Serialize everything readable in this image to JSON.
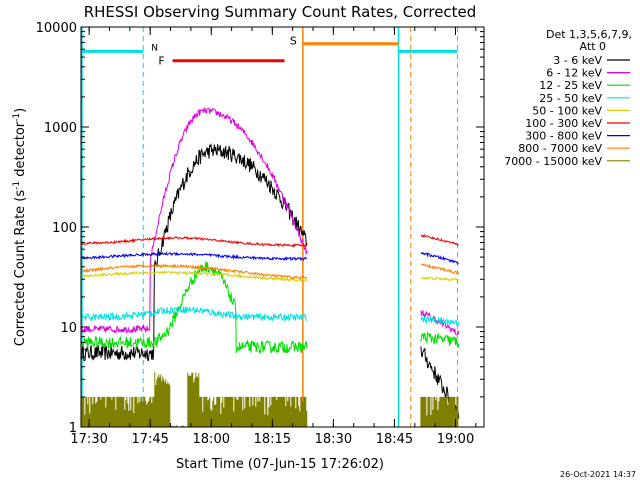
{
  "chart_data": {
    "type": "line",
    "title": "RHESSI Observing Summary Count Rates, Corrected",
    "xlabel": "Start Time (07-Jun-15 17:26:02)",
    "ylabel_main": "Corrected Count Rate (s",
    "ylabel_sup1": "-1",
    "ylabel_mid": " detector",
    "ylabel_sup2": "-1",
    "ylabel_end": ")",
    "yscale": "log",
    "ylim": [
      1,
      10000
    ],
    "xlim_minutes": [
      17.4667,
      19.1167
    ],
    "x_ticks": [
      {
        "label": "17:30",
        "minutes": 17.5
      },
      {
        "label": "17:45",
        "minutes": 17.75
      },
      {
        "label": "18:00",
        "minutes": 18.0
      },
      {
        "label": "18:15",
        "minutes": 18.25
      },
      {
        "label": "18:30",
        "minutes": 18.5
      },
      {
        "label": "18:45",
        "minutes": 18.75
      },
      {
        "label": "19:00",
        "minutes": 19.0
      }
    ],
    "y_ticks": [
      {
        "label": "1",
        "value": 1
      },
      {
        "label": "10",
        "value": 10
      },
      {
        "label": "100",
        "value": 100
      },
      {
        "label": "1000",
        "value": 1000
      },
      {
        "label": "10000",
        "value": 10000
      }
    ],
    "legend": {
      "position": "top-right",
      "header": [
        "Det 1,3,5,6,7,9,",
        "Att 0"
      ],
      "entries": [
        {
          "label": "3 - 6 keV",
          "color": "#000000"
        },
        {
          "label": "6 - 12 keV",
          "color": "#e000e0"
        },
        {
          "label": "12 - 25 keV",
          "color": "#00dd00"
        },
        {
          "label": "25 - 50 keV",
          "color": "#00e0e0"
        },
        {
          "label": "50 - 100 keV",
          "color": "#d8d000"
        },
        {
          "label": "100 - 300 keV",
          "color": "#ee0000"
        },
        {
          "label": "300 - 800 keV",
          "color": "#0000ee"
        },
        {
          "label": "800 - 7000 keV",
          "color": "#ff8000"
        },
        {
          "label": "7000 - 15000 keV",
          "color": "#808000"
        }
      ]
    },
    "markers": {
      "night_label": "N",
      "flare_label": "F",
      "saa_label": "S",
      "night_color": "#00e0e0",
      "flare_color": "#ee0000",
      "saa_color": "#ff8000"
    },
    "footer_date": "26-Oct-2021 14:37"
  }
}
